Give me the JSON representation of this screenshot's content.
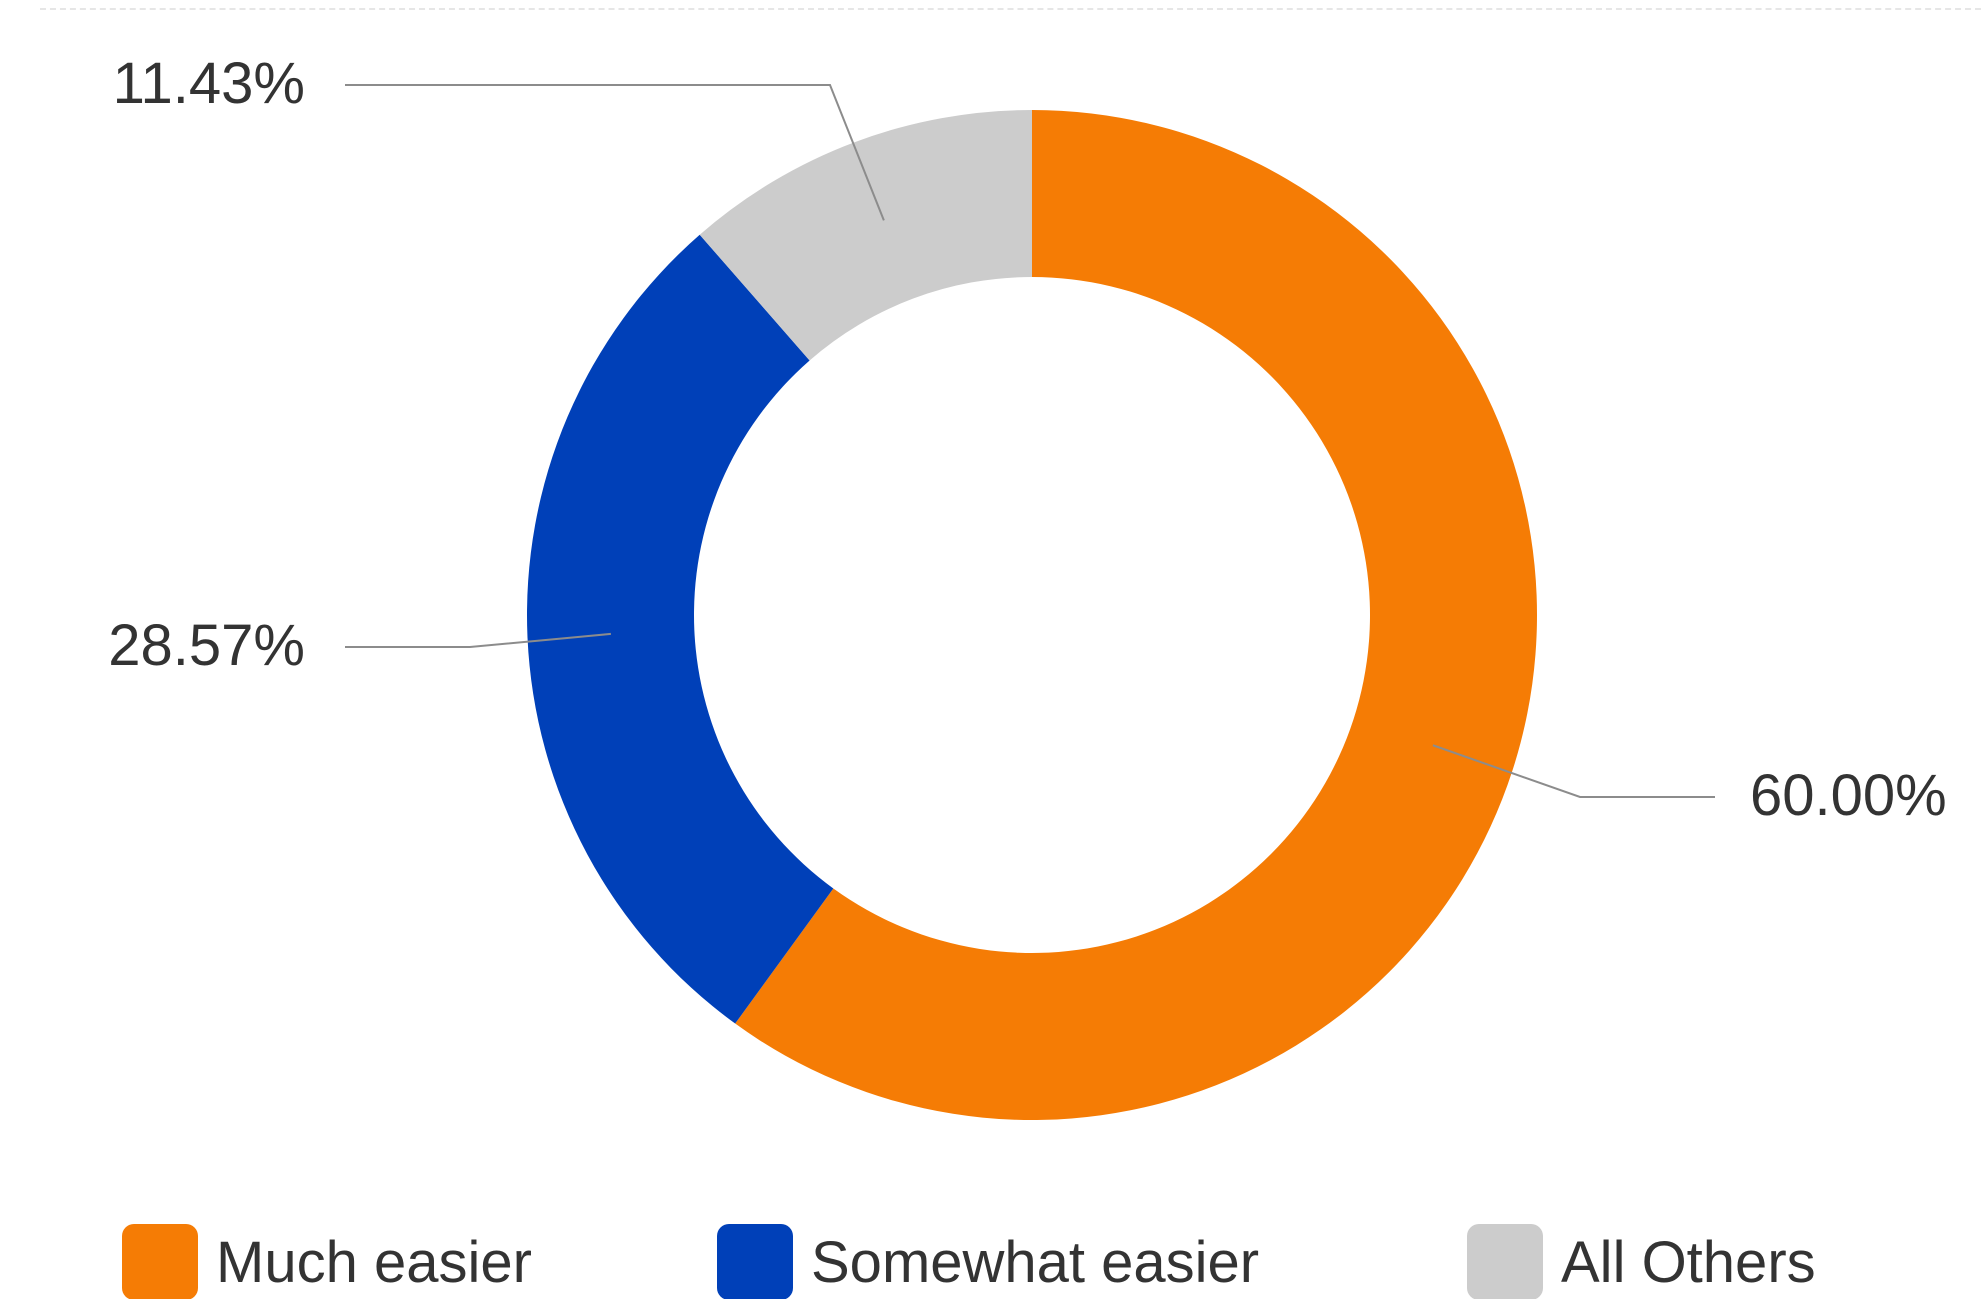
{
  "chart_data": {
    "type": "pie",
    "style": "donut",
    "categories": [
      "Much easier",
      "Somewhat easier",
      "All Others"
    ],
    "values": [
      60.0,
      28.57,
      11.43
    ],
    "value_labels": [
      "60.00%",
      "28.57%",
      "11.43%"
    ],
    "colors": [
      "#f57c05",
      "#0040b8",
      "#cccccc"
    ],
    "title": "",
    "legend_position": "bottom"
  }
}
